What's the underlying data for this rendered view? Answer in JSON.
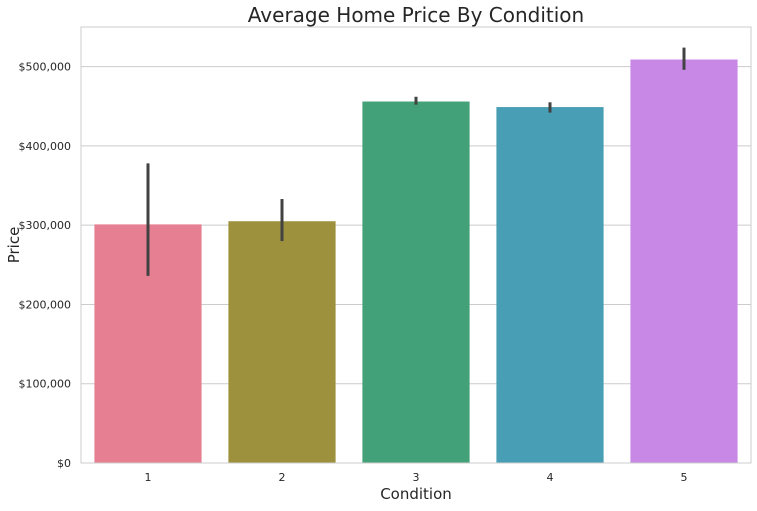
{
  "chart_data": {
    "type": "bar",
    "title": "Average Home Price By Condition",
    "xlabel": "Condition",
    "ylabel": "Price",
    "categories": [
      "1",
      "2",
      "3",
      "4",
      "5"
    ],
    "values": [
      301000,
      305000,
      456000,
      449000,
      509000
    ],
    "error_low": [
      236000,
      280000,
      452000,
      442000,
      496000
    ],
    "error_high": [
      378000,
      333000,
      462000,
      455000,
      524000
    ],
    "colors": [
      "#e67f91",
      "#9e913e",
      "#43a179",
      "#489fb5",
      "#c788e6"
    ],
    "ylim": [
      0,
      550000
    ],
    "yticks": [
      0,
      100000,
      200000,
      300000,
      400000,
      500000
    ],
    "ytick_labels": [
      "$0",
      "$100,000",
      "$200,000",
      "$300,000",
      "$400,000",
      "$500,000"
    ],
    "grid": "horizontal",
    "legend": "none"
  }
}
